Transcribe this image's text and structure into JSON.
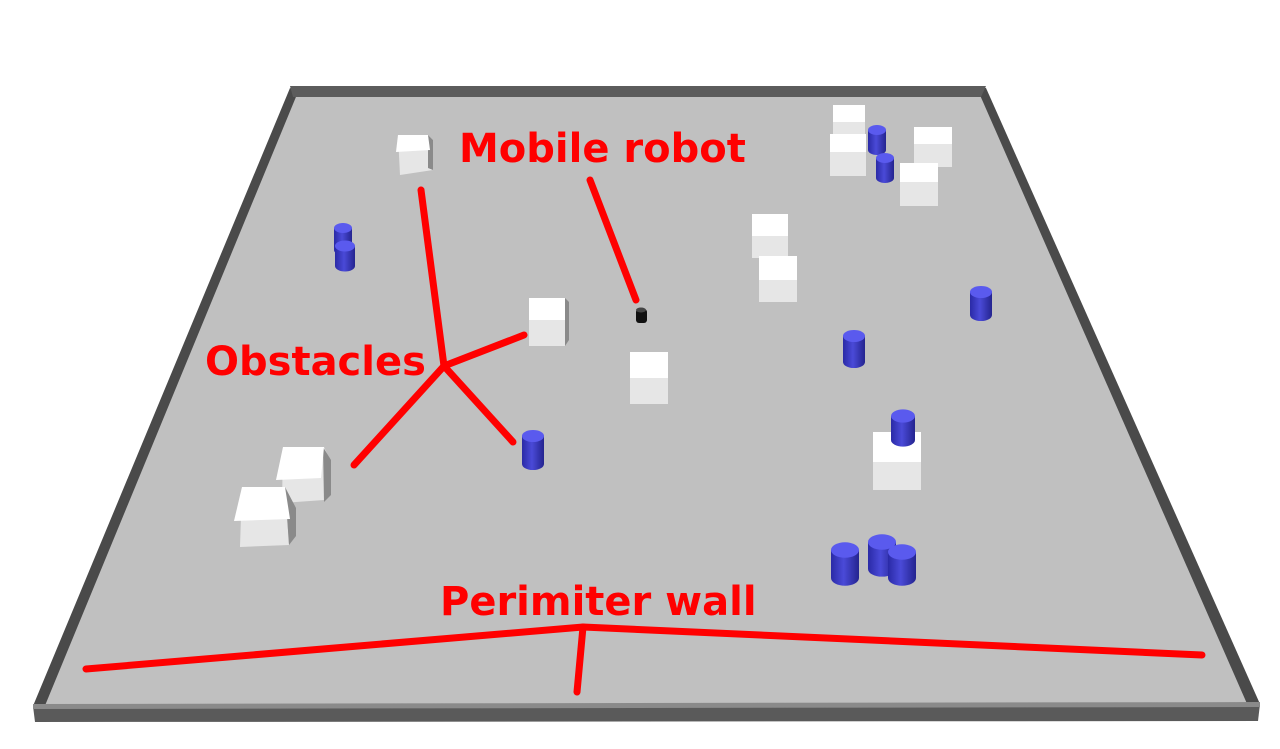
{
  "labels": {
    "mobile_robot": "Mobile robot",
    "obstacles": "Obstacles",
    "perimeter_wall": "Perimiter wall"
  },
  "colors": {
    "annotation": "#ff0000",
    "floor": "#c0c0c0",
    "wall": "#5a5a5a",
    "box_top": "#ffffff",
    "box_front": "#e4e4e4",
    "box_side": "#8a8a8a",
    "cylinder": "#3b3bc8",
    "cylinder_top": "#5a5aee",
    "robot": "#111111"
  }
}
